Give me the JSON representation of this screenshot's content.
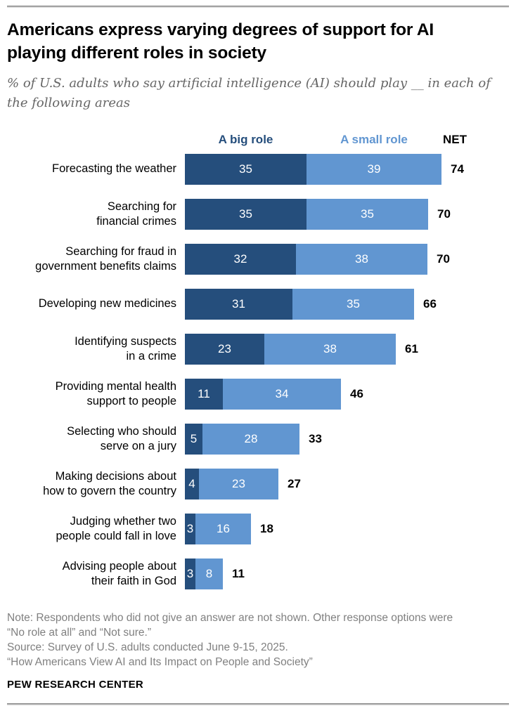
{
  "header": {
    "title": "Americans express varying degrees of support for AI\nplaying different roles in society",
    "subtitle": "% of U.S. adults who say artificial intelligence (AI) should play __ in each of\nthe following areas"
  },
  "chart_data": {
    "type": "bar",
    "orientation": "horizontal-stacked",
    "net_label": "NET",
    "xmax": 74,
    "legend_position": "top",
    "series": [
      {
        "name": "A big role",
        "color": "#254e7c"
      },
      {
        "name": "A small role",
        "color": "#6196d1"
      }
    ],
    "value_text_color": "#ffffff",
    "net_text_color": "#000000",
    "rows": [
      {
        "label": "Forecasting the weather",
        "big": 35,
        "small": 39,
        "net": 74
      },
      {
        "label": "Searching for\nfinancial crimes",
        "big": 35,
        "small": 35,
        "net": 70
      },
      {
        "label": "Searching for fraud in\ngovernment benefits claims",
        "big": 32,
        "small": 38,
        "net": 70
      },
      {
        "label": "Developing new medicines",
        "big": 31,
        "small": 35,
        "net": 66
      },
      {
        "label": "Identifying suspects\nin a crime",
        "big": 23,
        "small": 38,
        "net": 61
      },
      {
        "label": "Providing mental health\nsupport to people",
        "big": 11,
        "small": 34,
        "net": 46
      },
      {
        "label": "Selecting who should\nserve on a jury",
        "big": 5,
        "small": 28,
        "net": 33
      },
      {
        "label": "Making decisions about\nhow to govern the country",
        "big": 4,
        "small": 23,
        "net": 27
      },
      {
        "label": "Judging whether two\npeople could fall in love",
        "big": 3,
        "small": 16,
        "net": 18
      },
      {
        "label": "Advising people about\ntheir faith in God",
        "big": 3,
        "small": 8,
        "net": 11
      }
    ]
  },
  "footer": {
    "note": "Note: Respondents who did not give an answer are not shown. Other response options were\n“No role at all” and “Not sure.”",
    "source": "Source: Survey of U.S. adults conducted June 9-15, 2025.",
    "report": "“How Americans View AI and Its Impact on People and Society”",
    "brand": "PEW RESEARCH CENTER"
  }
}
